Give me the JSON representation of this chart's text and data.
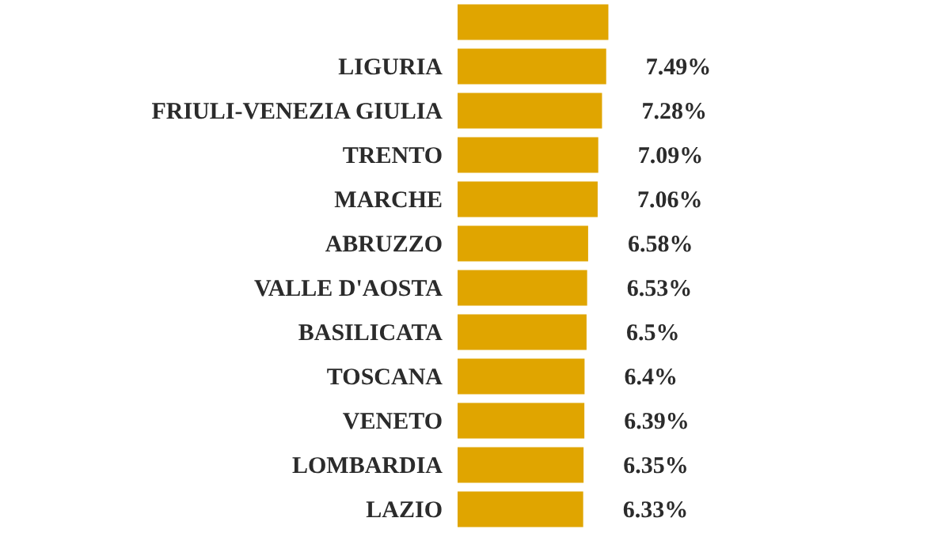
{
  "chart_data": {
    "type": "bar",
    "orientation": "horizontal",
    "color": "#e0a500",
    "categories": [
      null,
      "LIGURIA",
      "FRIULI-VENEZIA GIULIA",
      "TRENTO",
      "MARCHE",
      "ABRUZZO",
      "VALLE D'AOSTA",
      "BASILICATA",
      "TOSCANA",
      "VENETO",
      "LOMBARDIA",
      "LAZIO"
    ],
    "values": [
      7.6,
      7.49,
      7.28,
      7.09,
      7.06,
      6.58,
      6.53,
      6.5,
      6.4,
      6.39,
      6.35,
      6.33
    ],
    "value_labels": [
      null,
      "7.49%",
      "7.28%",
      "7.09%",
      "7.06%",
      "6.58%",
      "6.53%",
      "6.5%",
      "6.4%",
      "6.39%",
      "6.35%",
      "6.33%"
    ]
  }
}
